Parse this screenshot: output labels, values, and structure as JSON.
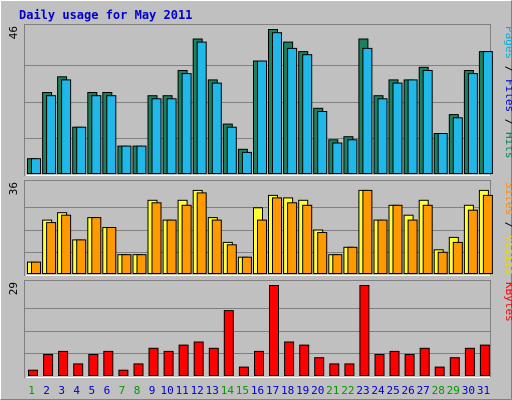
{
  "chart_data": {
    "type": "bar",
    "title": "Daily usage for May 2011",
    "categories": [
      "1",
      "2",
      "3",
      "4",
      "5",
      "6",
      "7",
      "8",
      "9",
      "10",
      "11",
      "12",
      "13",
      "14",
      "15",
      "16",
      "17",
      "18",
      "19",
      "20",
      "21",
      "22",
      "23",
      "24",
      "25",
      "26",
      "27",
      "28",
      "29",
      "30",
      "31"
    ],
    "weekend_days": [
      "1",
      "7",
      "8",
      "14",
      "15",
      "21",
      "22",
      "28",
      "29"
    ],
    "panels": [
      {
        "name": "top",
        "y_tick_label": "46",
        "ylim": [
          0,
          46
        ],
        "right_label": [
          {
            "text": "Pages",
            "color": "#00b0e0"
          },
          {
            "text": " / ",
            "color": "#000000"
          },
          {
            "text": "Files",
            "color": "#0000d0"
          },
          {
            "text": " / ",
            "color": "#000000"
          },
          {
            "text": "Hits",
            "color": "#008060"
          }
        ],
        "series": [
          {
            "name": "Hits",
            "color": "#1a8060",
            "values": [
              5,
              26,
              31,
              15,
              26,
              26,
              9,
              9,
              25,
              25,
              33,
              43,
              30,
              16,
              8,
              36,
              46,
              42,
              39,
              21,
              11,
              12,
              43,
              25,
              30,
              30,
              34,
              13,
              19,
              33,
              39
            ]
          },
          {
            "name": "Files",
            "color": "#1fb8e8",
            "values": [
              5,
              25,
              30,
              15,
              25,
              25,
              9,
              9,
              24,
              24,
              32,
              42,
              29,
              15,
              7,
              36,
              45,
              40,
              38,
              20,
              10,
              11,
              40,
              24,
              29,
              30,
              33,
              13,
              18,
              32,
              39
            ]
          }
        ]
      },
      {
        "name": "middle",
        "y_tick_label": "36",
        "ylim": [
          0,
          36
        ],
        "right_label": [
          {
            "text": "Sites",
            "color": "#ff8c00"
          },
          {
            "text": " / ",
            "color": "#000000"
          },
          {
            "text": "Visits",
            "color": "#e8d800"
          }
        ],
        "series": [
          {
            "name": "Visits",
            "color": "#ffff33",
            "values": [
              5,
              22,
              25,
              14,
              23,
              19,
              8,
              8,
              30,
              22,
              30,
              34,
              23,
              13,
              7,
              27,
              32,
              31,
              30,
              18,
              8,
              11,
              34,
              22,
              28,
              24,
              30,
              10,
              15,
              28,
              34
            ]
          },
          {
            "name": "Sites",
            "color": "#ff9900",
            "values": [
              5,
              21,
              24,
              14,
              23,
              19,
              8,
              8,
              29,
              22,
              28,
              33,
              22,
              12,
              7,
              22,
              31,
              29,
              28,
              17,
              8,
              11,
              34,
              22,
              28,
              22,
              28,
              9,
              13,
              26,
              32
            ]
          }
        ]
      },
      {
        "name": "bottom",
        "y_tick_label": "29",
        "ylim": [
          0,
          29
        ],
        "right_label": [
          {
            "text": "KBytes",
            "color": "#ff0000"
          }
        ],
        "series": [
          {
            "name": "KBytes",
            "color": "#ff0000",
            "values": [
              2,
              7,
              8,
              4,
              7,
              8,
              2,
              4,
              9,
              8,
              10,
              11,
              9,
              21,
              3,
              8,
              29,
              11,
              10,
              6,
              4,
              4,
              29,
              7,
              8,
              7,
              9,
              3,
              6,
              9,
              10
            ]
          }
        ]
      }
    ],
    "colors": {
      "background": "#c0c0c0",
      "frame_light": "#ffffff",
      "frame_dark": "#808080",
      "gridline": "#808080",
      "weekday_label": "#0000cc",
      "weekend_label": "#009900"
    }
  }
}
